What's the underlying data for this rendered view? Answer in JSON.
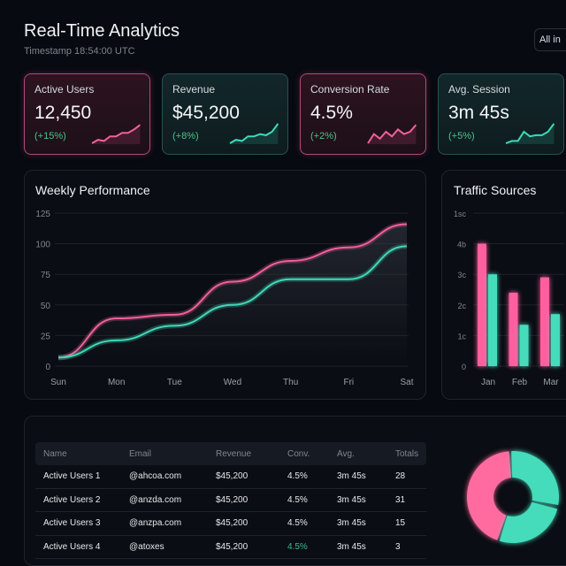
{
  "header": {
    "title": "Real-Time Analytics",
    "timestamp": "Timestamp 18:54:00 UTC",
    "filter": "All in"
  },
  "cards": [
    {
      "label": "Active Users",
      "value": "12,450",
      "change": "(+15%)",
      "accent": "#f0609a"
    },
    {
      "label": "Revenue",
      "value": "$45,200",
      "change": "(+8%)",
      "accent": "#3fd9b8"
    },
    {
      "label": "Conversion Rate",
      "value": "4.5%",
      "change": "(+2%)",
      "accent": "#f0609a"
    },
    {
      "label": "Avg. Session",
      "value": "3m 45s",
      "change": "(+5%)",
      "accent": "#3fd9b8"
    }
  ],
  "chart_data": [
    {
      "type": "line",
      "title": "Weekly Performance",
      "categories": [
        "Sun",
        "Mon",
        "Tue",
        "Wed",
        "Thu",
        "Fri",
        "Sat"
      ],
      "ylim": [
        0,
        125
      ],
      "yticks": [
        "0",
        "25",
        "50",
        "75",
        "100",
        "125"
      ],
      "grid": true,
      "series": [
        {
          "color": "#f0609a",
          "values": [
            7,
            39,
            42,
            69,
            86,
            97,
            116
          ]
        },
        {
          "color": "#3fd9b8",
          "values": [
            7,
            21,
            33,
            50,
            71,
            71,
            98
          ]
        }
      ]
    },
    {
      "type": "bar",
      "title": "Traffic Sources",
      "categories": [
        "Jan",
        "Feb",
        "Mar"
      ],
      "yticks": [
        "0",
        "1c",
        "2c",
        "3c",
        "4b",
        "1sc"
      ],
      "ylim": [
        0,
        5
      ],
      "grid": true,
      "series": [
        {
          "color": "#ff5f9e",
          "values": [
            4,
            2.4,
            2.9
          ]
        },
        {
          "color": "#45dcbc",
          "values": [
            3,
            1.35,
            1.7
          ]
        }
      ]
    },
    {
      "type": "pie",
      "donut": true,
      "colors": [
        "#ff6b9f",
        "#45dcbc",
        "#45dcbc"
      ]
    }
  ],
  "table": {
    "headers": [
      "Name",
      "Email",
      "Revenue",
      "Conv.",
      "Avg.",
      "Totals"
    ],
    "rows": [
      [
        "Active Users 1",
        "@ahcoa.com",
        "$45,200",
        "4.5%",
        "3m 45s",
        "28"
      ],
      [
        "Active Users 2",
        "@anzda.com",
        "$45,200",
        "4.5%",
        "3m 45s",
        "31"
      ],
      [
        "Active Users 3",
        "@anzpa.com",
        "$45,200",
        "4.5%",
        "3m 45s",
        "15"
      ],
      [
        "Active Users 4",
        "@atoxes",
        "$45,200",
        "4.5%",
        "3m 45s",
        "3"
      ]
    ]
  }
}
